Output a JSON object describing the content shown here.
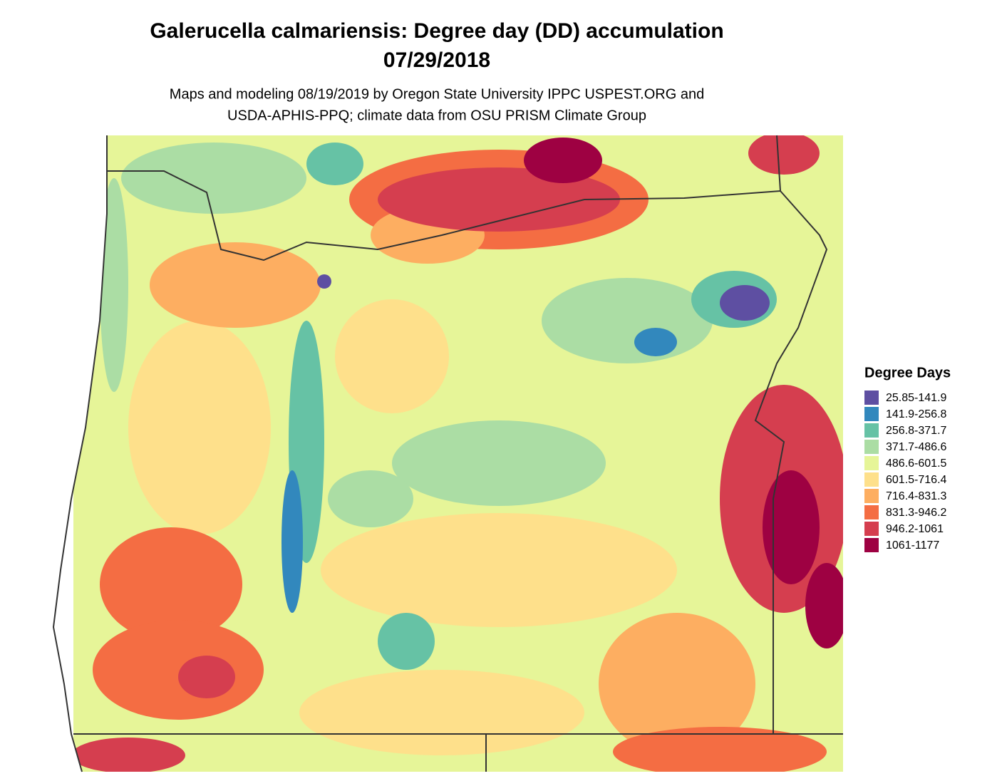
{
  "header": {
    "title": [
      "Galerucella calmariensis: Degree day (DD) accumulation",
      "07/29/2018"
    ],
    "subtitle": [
      "Maps and modeling 08/19/2019 by Oregon State University IPPC USPEST.ORG and",
      "USDA-APHIS-PPQ; climate data from OSU PRISM Climate Group"
    ]
  },
  "legend": {
    "title": "Degree Days",
    "items": [
      {
        "label": "25.85-141.9",
        "color": "#5e4fa2"
      },
      {
        "label": "141.9-256.8",
        "color": "#3288bd"
      },
      {
        "label": "256.8-371.7",
        "color": "#66c2a5"
      },
      {
        "label": "371.7-486.6",
        "color": "#abdda4"
      },
      {
        "label": "486.6-601.5",
        "color": "#e6f598"
      },
      {
        "label": "601.5-716.4",
        "color": "#fee08b"
      },
      {
        "label": "716.4-831.3",
        "color": "#fdae61"
      },
      {
        "label": "831.3-946.2",
        "color": "#f46d43"
      },
      {
        "label": "946.2-1061",
        "color": "#d53e4f"
      },
      {
        "label": "1061-1177",
        "color": "#9e0142"
      }
    ]
  }
}
